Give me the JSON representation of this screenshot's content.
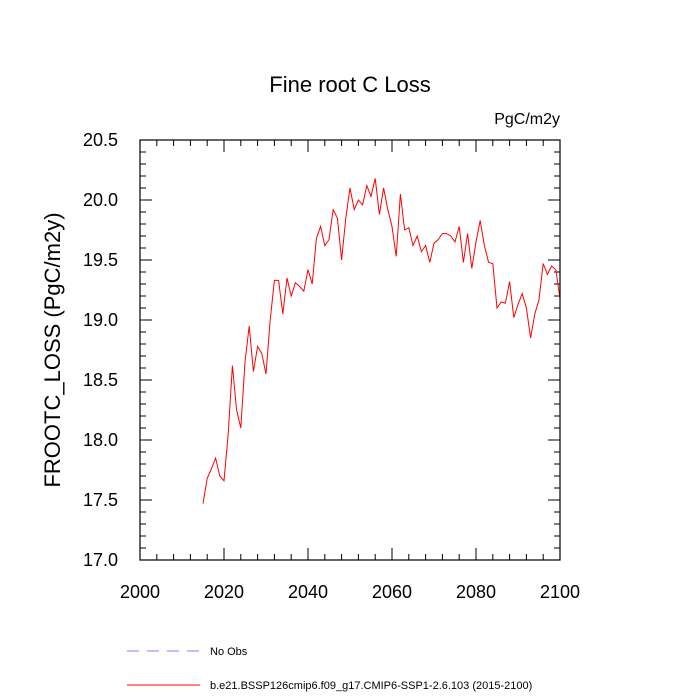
{
  "chart_data": {
    "type": "line",
    "title": "Fine root C Loss",
    "units_label": "PgC/m2y",
    "ylabel": "FROOTC_LOSS  (PgC/m2y)",
    "xlabel": "",
    "xlim": [
      2000,
      2100
    ],
    "ylim": [
      17.0,
      20.5
    ],
    "x_ticks": [
      2000,
      2020,
      2040,
      2060,
      2080,
      2100
    ],
    "y_ticks": [
      17.0,
      17.5,
      18.0,
      18.5,
      19.0,
      19.5,
      20.0,
      20.5
    ],
    "x_tick_labels": [
      "2000",
      "2020",
      "2040",
      "2060",
      "2080",
      "2100"
    ],
    "y_tick_labels": [
      "17.0",
      "17.5",
      "18.0",
      "18.5",
      "19.0",
      "19.5",
      "20.0",
      "20.5"
    ],
    "grid": false,
    "legend_placement": "bottom-left, below plot",
    "series": [
      {
        "name": "b.e21.BSSP126cmip6.f09_g17.CMIP6-SSP1-2.6.103 (2015-2100)",
        "color": "#ff0000",
        "style": "solid",
        "x": [
          2015,
          2016,
          2017,
          2018,
          2019,
          2020,
          2021,
          2022,
          2023,
          2024,
          2025,
          2026,
          2027,
          2028,
          2029,
          2030,
          2031,
          2032,
          2033,
          2034,
          2035,
          2036,
          2037,
          2038,
          2039,
          2040,
          2041,
          2042,
          2043,
          2044,
          2045,
          2046,
          2047,
          2048,
          2049,
          2050,
          2051,
          2052,
          2053,
          2054,
          2055,
          2056,
          2057,
          2058,
          2059,
          2060,
          2061,
          2062,
          2063,
          2064,
          2065,
          2066,
          2067,
          2068,
          2069,
          2070,
          2071,
          2072,
          2073,
          2074,
          2075,
          2076,
          2077,
          2078,
          2079,
          2080,
          2081,
          2082,
          2083,
          2084,
          2085,
          2086,
          2087,
          2088,
          2089,
          2090,
          2091,
          2092,
          2093,
          2094,
          2095,
          2096,
          2097,
          2098,
          2099,
          2100
        ],
        "y": [
          17.47,
          17.68,
          17.76,
          17.85,
          17.7,
          17.66,
          18.05,
          18.62,
          18.25,
          18.1,
          18.65,
          18.95,
          18.57,
          18.78,
          18.72,
          18.55,
          19.0,
          19.33,
          19.33,
          19.05,
          19.35,
          19.2,
          19.31,
          19.28,
          19.24,
          19.42,
          19.3,
          19.68,
          19.78,
          19.62,
          19.67,
          19.92,
          19.85,
          19.5,
          19.85,
          20.1,
          19.92,
          20.0,
          19.96,
          20.12,
          20.03,
          20.18,
          19.88,
          20.1,
          19.92,
          19.78,
          19.53,
          20.05,
          19.75,
          19.77,
          19.62,
          19.7,
          19.57,
          19.62,
          19.48,
          19.64,
          19.67,
          19.72,
          19.72,
          19.7,
          19.65,
          19.78,
          19.48,
          19.72,
          19.43,
          19.65,
          19.83,
          19.62,
          19.48,
          19.47,
          19.1,
          19.15,
          19.14,
          19.32,
          19.02,
          19.13,
          19.22,
          19.1,
          18.85,
          19.05,
          19.17,
          19.47,
          19.38,
          19.45,
          19.42,
          19.18
        ]
      },
      {
        "name": "No Obs",
        "color": "#8080ff",
        "style": "dashed",
        "x": [],
        "y": []
      }
    ]
  }
}
